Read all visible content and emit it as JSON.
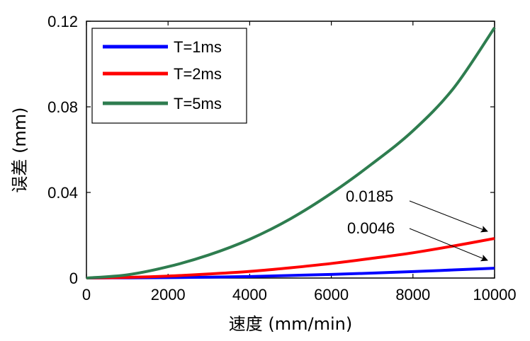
{
  "chart_data": {
    "type": "line",
    "title": "",
    "xlabel": "速度 (mm/min)",
    "ylabel": "误差 (mm)",
    "xlim": [
      0,
      10000
    ],
    "ylim": [
      0,
      0.12
    ],
    "xticks": [
      0,
      2000,
      4000,
      6000,
      8000,
      10000
    ],
    "xtick_labels": [
      "0",
      "2000",
      "4000",
      "6000",
      "8000",
      "10000"
    ],
    "yticks": [
      0,
      0.04,
      0.08,
      0.12
    ],
    "ytick_labels": [
      "0",
      "0.04",
      "0.08",
      "0.12"
    ],
    "grid": false,
    "legend_position": "top-left",
    "series": [
      {
        "name": "T=1ms",
        "color": "#0000ff",
        "x": [
          0,
          1000,
          2000,
          3000,
          4000,
          5000,
          6000,
          7000,
          8000,
          9000,
          10000
        ],
        "y": [
          0,
          0.0001,
          0.0002,
          0.0004,
          0.0007,
          0.0012,
          0.0017,
          0.0023,
          0.003,
          0.0038,
          0.0046
        ]
      },
      {
        "name": "T=2ms",
        "color": "#ff0000",
        "x": [
          0,
          1000,
          2000,
          3000,
          4000,
          5000,
          6000,
          7000,
          8000,
          9000,
          10000
        ],
        "y": [
          0,
          0.0003,
          0.0009,
          0.0019,
          0.0031,
          0.0048,
          0.0068,
          0.0092,
          0.0118,
          0.015,
          0.0185
        ]
      },
      {
        "name": "T=5ms",
        "color": "#2e7d4f",
        "x": [
          0,
          1000,
          2000,
          3000,
          4000,
          5000,
          6000,
          7000,
          8000,
          9000,
          10000
        ],
        "y": [
          0,
          0.0015,
          0.0053,
          0.0108,
          0.0181,
          0.0277,
          0.0396,
          0.0534,
          0.0688,
          0.0888,
          0.117
        ]
      }
    ],
    "annotations": [
      {
        "text": "0.0185",
        "x": 10000,
        "y": 0.0185
      },
      {
        "text": "0.0046",
        "x": 10000,
        "y": 0.0046
      }
    ]
  }
}
